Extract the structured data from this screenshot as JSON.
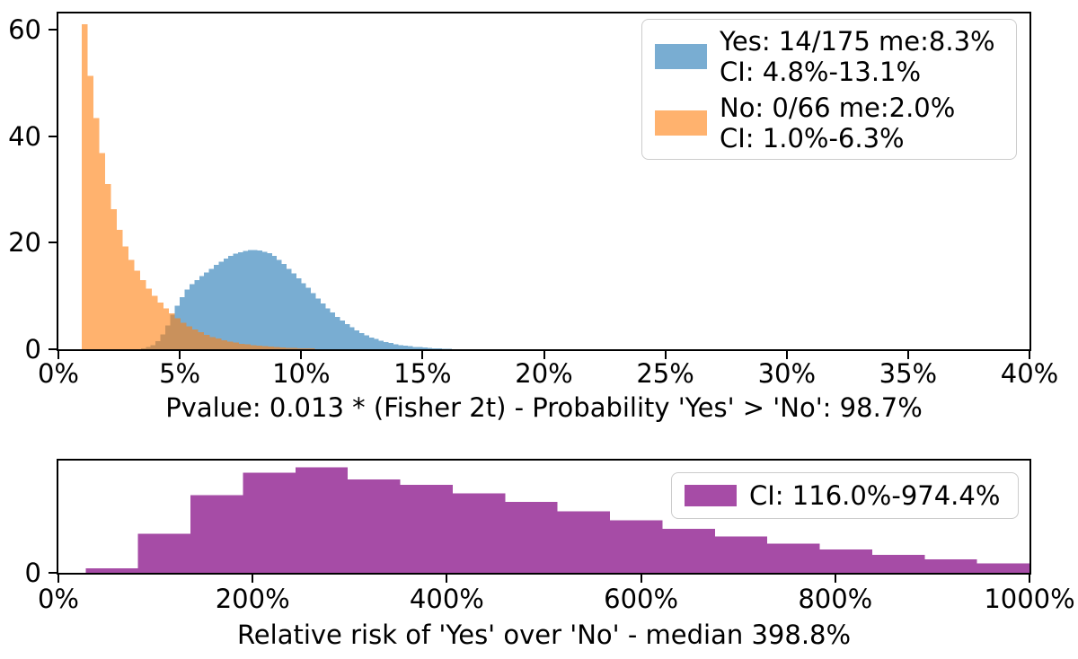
{
  "figure": {
    "background": "#ffffff",
    "text_color": "#000000",
    "spine_color": "#000000"
  },
  "chart_data": [
    {
      "type": "histogram",
      "title": "",
      "xlabel": "Pvalue: 0.013 * (Fisher 2t) - Probability 'Yes' > 'No': 98.7%",
      "ylabel": "",
      "xlim": [
        0,
        40
      ],
      "ylim": [
        0,
        63
      ],
      "grid": false,
      "legend_position": "upper right",
      "xticks": {
        "values": [
          0,
          5,
          10,
          15,
          20,
          25,
          30,
          35,
          40
        ],
        "labels": [
          "0%",
          "5%",
          "10%",
          "15%",
          "20%",
          "25%",
          "30%",
          "35%",
          "40%"
        ]
      },
      "yticks": {
        "values": [
          0,
          20,
          40,
          60
        ],
        "labels": [
          "0",
          "20",
          "40",
          "60"
        ]
      },
      "series": [
        {
          "name": "Yes",
          "legend_line1": "Yes: 14/175 me:8.3%",
          "legend_line2": "CI: 4.8%-13.1%",
          "color": "#1f77b4",
          "alpha": 0.6,
          "bin_start": 3.4,
          "bin_width": 0.2,
          "heights": [
            0.2,
            0.4,
            0.8,
            1.5,
            2.8,
            4.5,
            6.5,
            8.2,
            9.8,
            11.2,
            12.2,
            13,
            13.7,
            14.4,
            15.1,
            15.8,
            16.4,
            17,
            17.5,
            17.9,
            18.2,
            18.45,
            18.6,
            18.6,
            18.5,
            18.3,
            18,
            17.5,
            16.8,
            16,
            15.1,
            14.2,
            13.3,
            12.4,
            11.5,
            10.5,
            9.5,
            8.6,
            7.7,
            6.9,
            6.1,
            5.4,
            4.7,
            4.1,
            3.5,
            3,
            2.6,
            2.2,
            1.9,
            1.6,
            1.35,
            1.15,
            0.95,
            0.8,
            0.65,
            0.55,
            0.45,
            0.38,
            0.3,
            0.25,
            0.2,
            0.15,
            0.1,
            0.06
          ]
        },
        {
          "name": "No",
          "legend_line1": "No: 0/66 me:2.0%",
          "legend_line2": "CI: 1.0%-6.3%",
          "color": "#ff7f0e",
          "alpha": 0.6,
          "bin_start": 0.96,
          "bin_width": 0.24,
          "heights": [
            61,
            51.3,
            43.4,
            36.8,
            31,
            26.3,
            22.4,
            19.3,
            16.8,
            14.7,
            13,
            11.4,
            10,
            8.8,
            7.7,
            6.7,
            5.8,
            5,
            4.3,
            3.7,
            3.2,
            2.7,
            2.3,
            2,
            1.7,
            1.45,
            1.25,
            1.05,
            0.9,
            0.75,
            0.65,
            0.55,
            0.47,
            0.4,
            0.34,
            0.29,
            0.25,
            0.21,
            0.18,
            0.15
          ]
        }
      ]
    },
    {
      "type": "histogram",
      "title": "",
      "xlabel": "Relative risk of 'Yes' over 'No' - median 398.8%",
      "ylabel": "",
      "xlim": [
        0,
        1000
      ],
      "ylim": [
        0,
        13
      ],
      "grid": false,
      "legend_position": "upper right",
      "xticks": {
        "values": [
          0,
          200,
          400,
          600,
          800,
          1000
        ],
        "labels": [
          "0%",
          "200%",
          "400%",
          "600%",
          "800%",
          "1000%"
        ]
      },
      "yticks": {
        "values": [
          0
        ],
        "labels": [
          "0"
        ]
      },
      "series": [
        {
          "name": "Relative risk",
          "legend_line1": "CI: 116.0%-974.4%",
          "legend_line2": "",
          "color": "#800080",
          "alpha": 0.7,
          "bin_start": 28,
          "bin_width": 54,
          "heights": [
            0.5,
            4.5,
            9,
            11.6,
            12.2,
            10.8,
            10.2,
            9.2,
            8.2,
            7.1,
            6.1,
            5.1,
            4.2,
            3.4,
            2.7,
            2.1,
            1.55,
            1.1
          ]
        }
      ]
    }
  ]
}
